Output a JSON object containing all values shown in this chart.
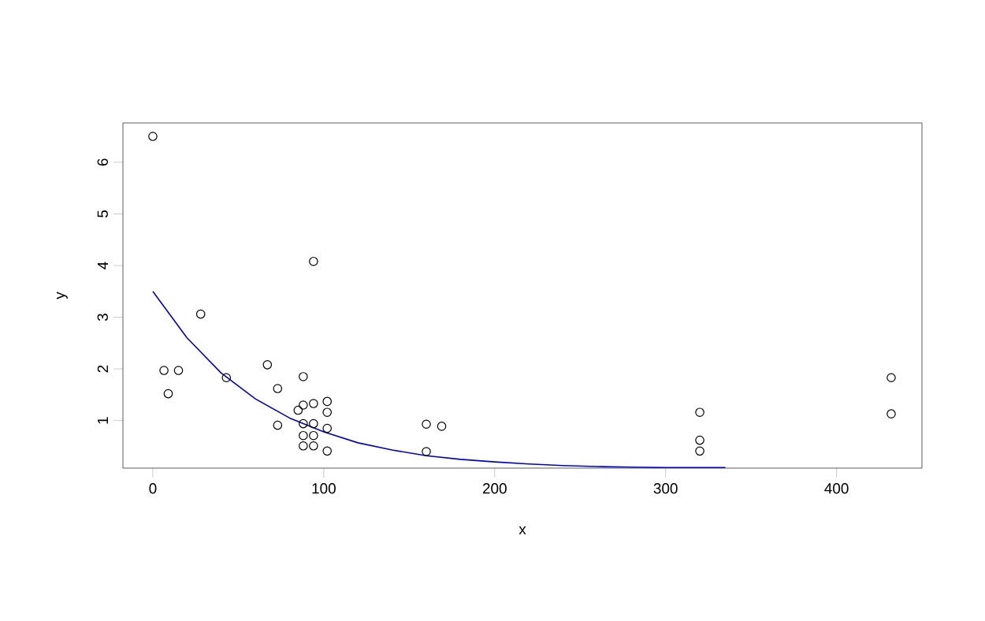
{
  "chart_data": {
    "type": "scatter",
    "xlabel": "x",
    "ylabel": "y",
    "marker": "circle",
    "grid": false,
    "xlim": [
      -17.5,
      450
    ],
    "ylim": [
      0.08,
      6.76
    ],
    "xticks": [
      0,
      100,
      200,
      300,
      400
    ],
    "yticks": [
      1,
      2,
      3,
      4,
      5,
      6
    ],
    "series": [
      {
        "color": "#000000",
        "x": [
          0,
          6.5,
          15,
          9,
          28,
          43,
          67,
          73,
          73,
          88,
          94,
          88,
          94,
          102,
          102,
          85,
          88,
          94,
          94,
          88,
          102,
          88,
          94,
          102,
          160,
          169,
          160,
          320,
          320,
          320,
          432,
          432
        ],
        "values": [
          6.5,
          1.97,
          1.97,
          1.52,
          3.06,
          1.83,
          2.08,
          1.62,
          0.91,
          1.85,
          4.08,
          1.3,
          1.33,
          1.37,
          1.16,
          1.2,
          0.94,
          0.94,
          0.71,
          0.71,
          0.85,
          0.51,
          0.51,
          0.41,
          0.93,
          0.89,
          0.4,
          1.16,
          0.62,
          0.41,
          1.83,
          1.13
        ]
      },
      {
        "type": "line",
        "color": "#0000cd",
        "marker": "none",
        "x": [
          0,
          20,
          40,
          60,
          80,
          100,
          120,
          140,
          160,
          180,
          200,
          220,
          240,
          260,
          280,
          300,
          335
        ],
        "values": [
          3.5,
          2.6,
          1.92,
          1.42,
          1.05,
          0.78,
          0.57,
          0.43,
          0.32,
          0.25,
          0.2,
          0.16,
          0.13,
          0.11,
          0.1,
          0.09,
          0.09
        ]
      }
    ]
  }
}
